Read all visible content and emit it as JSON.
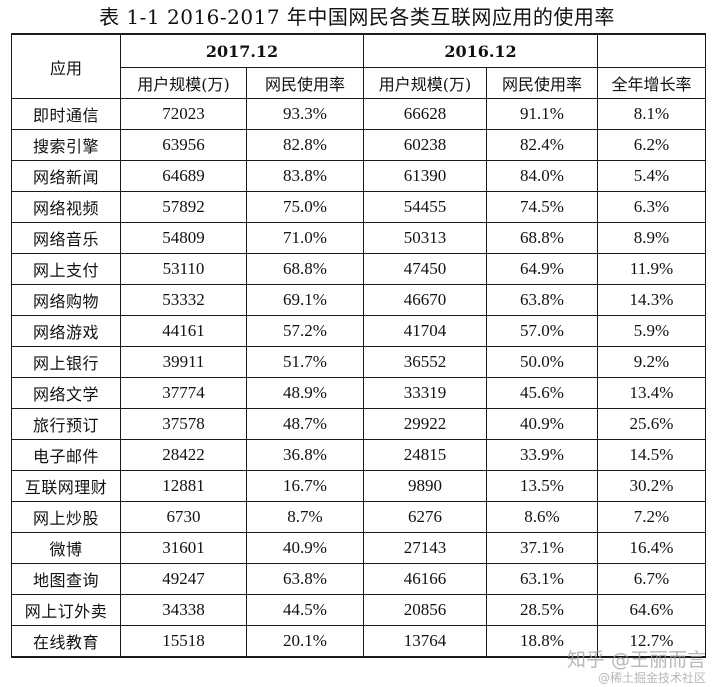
{
  "title": "表 1-1 2016-2017 年中国网民各类互联网应用的使用率",
  "header": {
    "app_col": "应用",
    "period_2017": "2017.12",
    "period_2016": "2016.12",
    "sub_users": "用户规模(万)",
    "sub_rate": "网民使用率",
    "growth": "全年增长率"
  },
  "rows": [
    {
      "app": "即时通信",
      "users_2017": "72023",
      "rate_2017": "93.3%",
      "users_2016": "66628",
      "rate_2016": "91.1%",
      "growth": "8.1%"
    },
    {
      "app": "搜索引擎",
      "users_2017": "63956",
      "rate_2017": "82.8%",
      "users_2016": "60238",
      "rate_2016": "82.4%",
      "growth": "6.2%"
    },
    {
      "app": "网络新闻",
      "users_2017": "64689",
      "rate_2017": "83.8%",
      "users_2016": "61390",
      "rate_2016": "84.0%",
      "growth": "5.4%"
    },
    {
      "app": "网络视频",
      "users_2017": "57892",
      "rate_2017": "75.0%",
      "users_2016": "54455",
      "rate_2016": "74.5%",
      "growth": "6.3%"
    },
    {
      "app": "网络音乐",
      "users_2017": "54809",
      "rate_2017": "71.0%",
      "users_2016": "50313",
      "rate_2016": "68.8%",
      "growth": "8.9%"
    },
    {
      "app": "网上支付",
      "users_2017": "53110",
      "rate_2017": "68.8%",
      "users_2016": "47450",
      "rate_2016": "64.9%",
      "growth": "11.9%"
    },
    {
      "app": "网络购物",
      "users_2017": "53332",
      "rate_2017": "69.1%",
      "users_2016": "46670",
      "rate_2016": "63.8%",
      "growth": "14.3%"
    },
    {
      "app": "网络游戏",
      "users_2017": "44161",
      "rate_2017": "57.2%",
      "users_2016": "41704",
      "rate_2016": "57.0%",
      "growth": "5.9%"
    },
    {
      "app": "网上银行",
      "users_2017": "39911",
      "rate_2017": "51.7%",
      "users_2016": "36552",
      "rate_2016": "50.0%",
      "growth": "9.2%"
    },
    {
      "app": "网络文学",
      "users_2017": "37774",
      "rate_2017": "48.9%",
      "users_2016": "33319",
      "rate_2016": "45.6%",
      "growth": "13.4%"
    },
    {
      "app": "旅行预订",
      "users_2017": "37578",
      "rate_2017": "48.7%",
      "users_2016": "29922",
      "rate_2016": "40.9%",
      "growth": "25.6%"
    },
    {
      "app": "电子邮件",
      "users_2017": "28422",
      "rate_2017": "36.8%",
      "users_2016": "24815",
      "rate_2016": "33.9%",
      "growth": "14.5%"
    },
    {
      "app": "互联网理财",
      "users_2017": "12881",
      "rate_2017": "16.7%",
      "users_2016": "9890",
      "rate_2016": "13.5%",
      "growth": "30.2%"
    },
    {
      "app": "网上炒股",
      "users_2017": "6730",
      "rate_2017": "8.7%",
      "users_2016": "6276",
      "rate_2016": "8.6%",
      "growth": "7.2%"
    },
    {
      "app": "微博",
      "users_2017": "31601",
      "rate_2017": "40.9%",
      "users_2016": "27143",
      "rate_2016": "37.1%",
      "growth": "16.4%"
    },
    {
      "app": "地图查询",
      "users_2017": "49247",
      "rate_2017": "63.8%",
      "users_2016": "46166",
      "rate_2016": "63.1%",
      "growth": "6.7%"
    },
    {
      "app": "网上订外卖",
      "users_2017": "34338",
      "rate_2017": "44.5%",
      "users_2016": "20856",
      "rate_2016": "28.5%",
      "growth": "64.6%"
    },
    {
      "app": "在线教育",
      "users_2017": "15518",
      "rate_2017": "20.1%",
      "users_2016": "13764",
      "rate_2016": "18.8%",
      "growth": "12.7%"
    }
  ],
  "watermark": {
    "main": "知乎 @王丽而言",
    "sub": "@稀土掘金技术社区"
  }
}
